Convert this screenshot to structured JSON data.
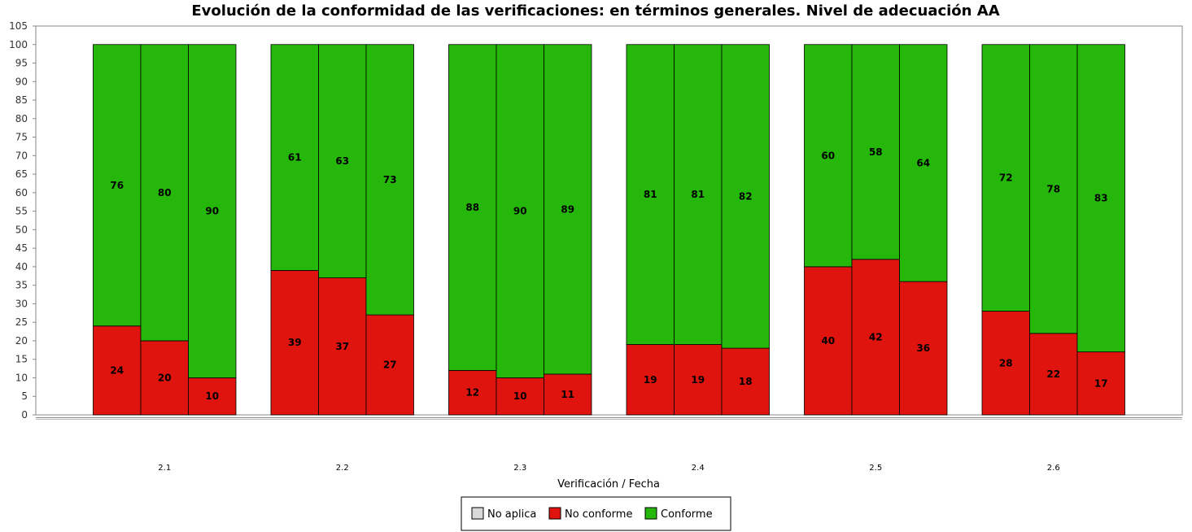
{
  "chart_data": {
    "type": "bar",
    "stacked": true,
    "title": "Evolución de la conformidad de las verificaciones: en términos generales. Nivel de adecuación AA",
    "xlabel": "Verificación / Fecha",
    "ylabel": "",
    "ylim": [
      0,
      105
    ],
    "yticks": [
      0,
      5,
      10,
      15,
      20,
      25,
      30,
      35,
      40,
      45,
      50,
      55,
      60,
      65,
      70,
      75,
      80,
      85,
      90,
      95,
      100,
      105
    ],
    "categories": [
      "2.1",
      "2.2",
      "2.3",
      "2.4",
      "2.5",
      "2.6"
    ],
    "bars_per_category": 3,
    "series": [
      {
        "name": "No aplica",
        "color": "#d8d8d8",
        "values": [
          [
            0,
            0,
            0
          ],
          [
            0,
            0,
            0
          ],
          [
            0,
            0,
            0
          ],
          [
            0,
            0,
            0
          ],
          [
            0,
            0,
            0
          ],
          [
            0,
            0,
            0
          ]
        ]
      },
      {
        "name": "No conforme",
        "color": "#e0140e",
        "values": [
          [
            24,
            20,
            10
          ],
          [
            39,
            37,
            27
          ],
          [
            12,
            10,
            11
          ],
          [
            19,
            19,
            18
          ],
          [
            40,
            42,
            36
          ],
          [
            28,
            22,
            17
          ]
        ]
      },
      {
        "name": "Conforme",
        "color": "#25b80b",
        "values": [
          [
            76,
            80,
            90
          ],
          [
            61,
            63,
            73
          ],
          [
            88,
            90,
            89
          ],
          [
            81,
            81,
            82
          ],
          [
            60,
            58,
            64
          ],
          [
            72,
            78,
            83
          ]
        ]
      }
    ],
    "grid": false,
    "legend_position": "bottom-center"
  }
}
